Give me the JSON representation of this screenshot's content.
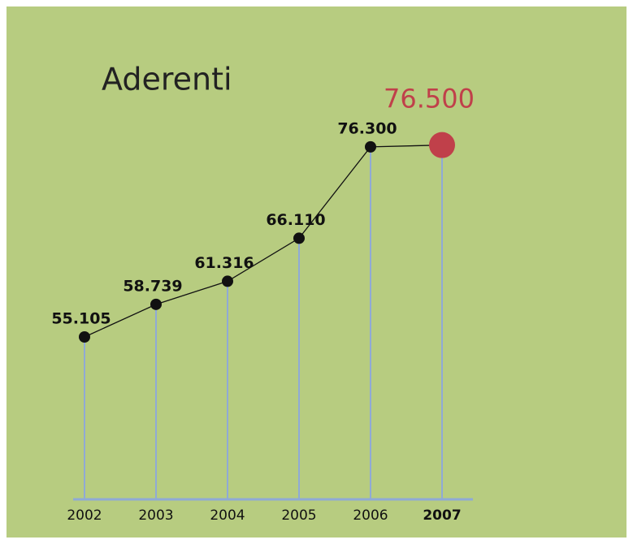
{
  "chart_data": {
    "type": "line",
    "title": "Aderenti",
    "categories": [
      "2002",
      "2003",
      "2004",
      "2005",
      "2006",
      "2007"
    ],
    "values": [
      55105,
      58739,
      61316,
      66110,
      76300,
      76500
    ],
    "value_labels": [
      "55.105",
      "58.739",
      "61.316",
      "66.110",
      "76.300",
      "76.500"
    ],
    "ylim": [
      37000,
      80000
    ],
    "color": "#111111",
    "highlight_color": "#c0404a",
    "background": "#b7cc80",
    "drop_line_color": "#8faad6"
  }
}
